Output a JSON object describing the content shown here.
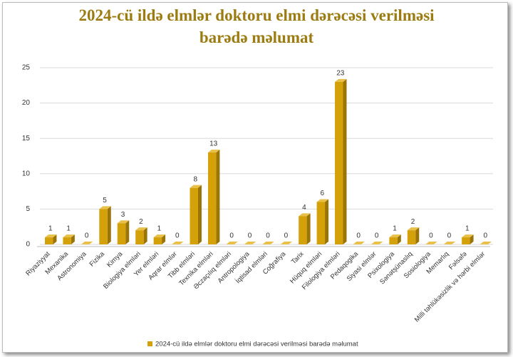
{
  "chart_data": {
    "type": "bar",
    "title": "2024-cü ildə elmlər doktoru elmi dərəcəsi verilməsi barədə məlumat",
    "categories": [
      "Riyaziyyat",
      "Mexanika",
      "Astronomiya",
      "Fizika",
      "Kimya",
      "Biologiya elmləri",
      "Yer elmləri",
      "Aqrar elmlər",
      "Tibb elmləri",
      "Texnika elmləri",
      "Əczaçılıq elmləri",
      "Antropologiya",
      "İqtisad elmləri",
      "Coğrafiya",
      "Tarix",
      "Hüquq elmləri",
      "Filologiya elmləri",
      "Pedaqogika",
      "Siyasi elmlər",
      "Psixologiya",
      "Sənətşünaslıq",
      "Sosiologiya",
      "Memarlıq",
      "Fəlsəfə",
      "Milli təhlükəsizlik və hərbi elmlər"
    ],
    "series": [
      {
        "name": "2024-cü ildə elmlər doktoru elmi dərəcəsi verilməsi barədə məlumat",
        "color": "#d4a108",
        "values": [
          1,
          1,
          0,
          5,
          3,
          2,
          1,
          0,
          8,
          13,
          0,
          0,
          0,
          0,
          4,
          6,
          23,
          0,
          0,
          1,
          2,
          0,
          0,
          1,
          0
        ]
      }
    ],
    "ylim": [
      0,
      25
    ],
    "yticks": [
      0,
      5,
      10,
      15,
      20,
      25
    ],
    "grid": true,
    "legend": "bottom"
  }
}
